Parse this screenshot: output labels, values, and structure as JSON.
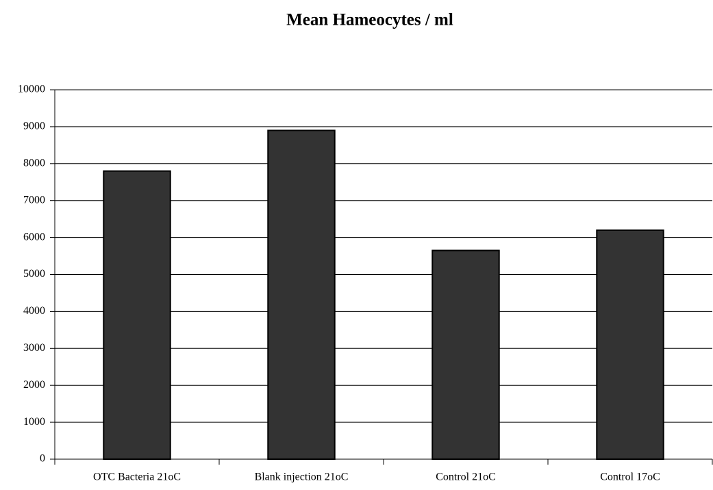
{
  "chart_data": {
    "type": "bar",
    "title": "Mean Hameocytes / ml",
    "categories": [
      "OTC Bacteria 21oC",
      "Blank injection 21oC",
      "Control 21oC",
      "Control 17oC"
    ],
    "values": [
      7800,
      8900,
      5650,
      6200
    ],
    "color": "#333333",
    "ylim": [
      0,
      10000
    ],
    "yticks": [
      0,
      1000,
      2000,
      3000,
      4000,
      5000,
      6000,
      7000,
      8000,
      9000,
      10000
    ],
    "grid": true
  }
}
